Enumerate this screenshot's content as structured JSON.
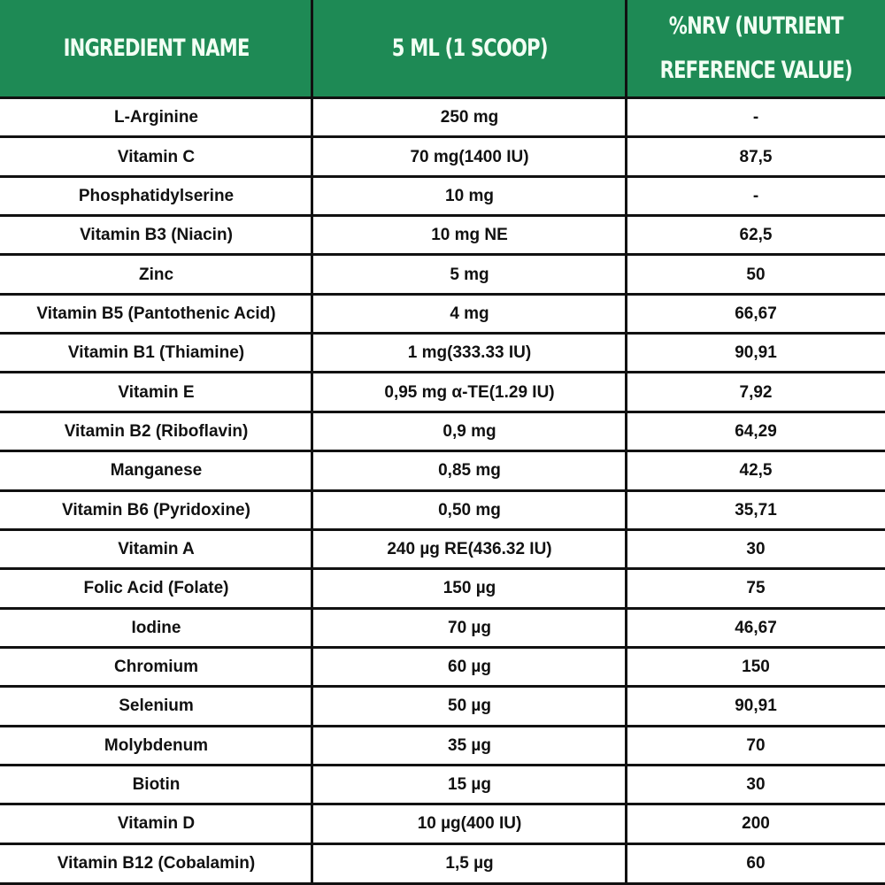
{
  "header_color": "#1e8a55",
  "columns": [
    "INGREDIENT NAME",
    "5 ML (1 SCOOP)",
    "%NRV (NUTRIENT REFERENCE VALUE)"
  ],
  "column_lines": [
    [
      "INGREDIENT NAME"
    ],
    [
      "5 ML (1 SCOOP)"
    ],
    [
      "%NRV (NUTRIENT",
      "REFERENCE VALUE)"
    ]
  ],
  "rows": [
    [
      "L-Arginine",
      "250 mg",
      "-"
    ],
    [
      "Vitamin C",
      "70 mg(1400 IU)",
      "87,5"
    ],
    [
      "Phosphatidylserine",
      "10 mg",
      "-"
    ],
    [
      "Vitamin B3 (Niacin)",
      "10 mg NE",
      "62,5"
    ],
    [
      "Zinc",
      "5 mg",
      "50"
    ],
    [
      "Vitamin B5 (Pantothenic Acid)",
      "4 mg",
      "66,67"
    ],
    [
      "Vitamin B1 (Thiamine)",
      "1 mg(333.33 IU)",
      "90,91"
    ],
    [
      "Vitamin E",
      "0,95 mg α-TE(1.29 IU)",
      "7,92"
    ],
    [
      "Vitamin B2 (Riboflavin)",
      "0,9 mg",
      "64,29"
    ],
    [
      "Manganese",
      "0,85 mg",
      "42,5"
    ],
    [
      "Vitamin B6 (Pyridoxine)",
      "0,50 mg",
      "35,71"
    ],
    [
      "Vitamin A",
      "240 µg RE(436.32 IU)",
      "30"
    ],
    [
      "Folic Acid (Folate)",
      "150 µg",
      "75"
    ],
    [
      "Iodine",
      "70 µg",
      "46,67"
    ],
    [
      "Chromium",
      "60 µg",
      "150"
    ],
    [
      "Selenium",
      "50 µg",
      "90,91"
    ],
    [
      "Molybdenum",
      "35 µg",
      "70"
    ],
    [
      "Biotin",
      "15 µg",
      "30"
    ],
    [
      "Vitamin D",
      "10 µg(400 IU)",
      "200"
    ],
    [
      "Vitamin B12 (Cobalamin)",
      "1,5 µg",
      "60"
    ]
  ]
}
